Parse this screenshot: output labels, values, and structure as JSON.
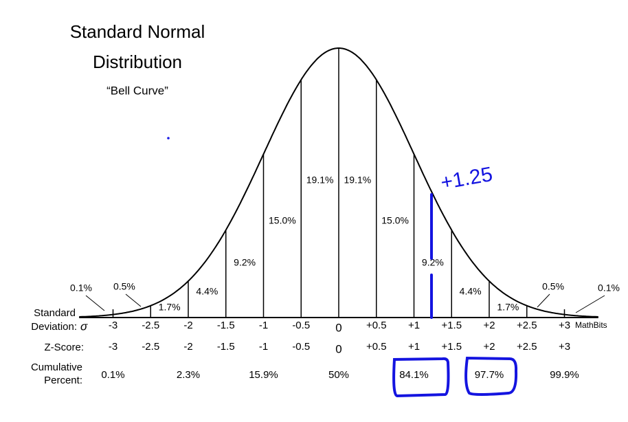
{
  "title_lines": [
    "Standard Normal",
    "Distribution"
  ],
  "subtitle": "“Bell Curve”",
  "sigma_label": [
    "Standard",
    "Deviation:"
  ],
  "sigma_symbol": "σ",
  "sigma_ticks": [
    "-3",
    "-2.5",
    "-2",
    "-1.5",
    "-1",
    "-0.5",
    "0",
    "+0.5",
    "+1",
    "+1.5",
    "+2",
    "+2.5",
    "+3"
  ],
  "zscore_label": "Z-Score:",
  "zscores": [
    "-3",
    "-2.5",
    "-2",
    "-1.5",
    "-1",
    "-0.5",
    "0",
    "+0.5",
    "+1",
    "+1.5",
    "+2",
    "+2.5",
    "+3"
  ],
  "cumulative_label": [
    "Cumulative",
    "Percent:"
  ],
  "cumulative": [
    "0.1%",
    "2.3%",
    "15.9%",
    "50%",
    "84.1%",
    "97.7%",
    "99.9%"
  ],
  "segments": [
    "0.1%",
    "0.5%",
    "1.7%",
    "4.4%",
    "9.2%",
    "15.0%",
    "19.1%",
    "19.1%",
    "15.0%",
    "9.2%",
    "4.4%",
    "1.7%",
    "0.5%",
    "0.1%"
  ],
  "watermark": "MathBits",
  "annotation": "+1.25"
}
